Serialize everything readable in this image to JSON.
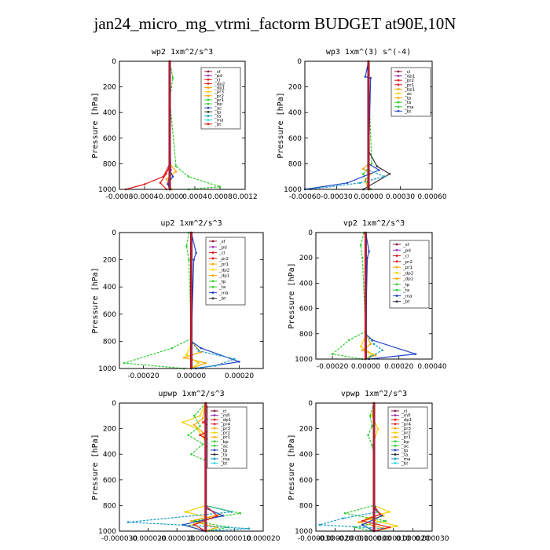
{
  "figure_title": "jan24_micro_mg_vtrmi_factorm  BUDGET at90E,10N",
  "colors": {
    "red": "#e41a1c",
    "purple": "#9b30b5",
    "orange": "#ffa500",
    "yellow": "#f5d000",
    "green": "#33cc33",
    "blue": "#1f45c8",
    "teal": "#1a9ec4",
    "cyan": "#33dddd",
    "dark": "#333333",
    "maroon": "#8b1a3a"
  },
  "chart_data": [
    {
      "type": "line",
      "title": "wp2  1xm^2/s^3",
      "ylabel": "Pressure [hPa]",
      "ylim": [
        1000,
        0
      ],
      "xlim": [
        -0.0008,
        0.0012
      ],
      "xticks": [
        -0.0008,
        -0.0004,
        0.0,
        0.0004,
        0.0008,
        0.0012
      ],
      "xtick_labels": [
        "-0.0008",
        "-0.0004",
        "-0.0000",
        "0.0004",
        "0.0008",
        "0.0012"
      ],
      "yticks": [
        0,
        200,
        400,
        600,
        800,
        1000
      ],
      "legend": [
        "_sf",
        "_pd",
        "_cl",
        "_dp2",
        "_dp1",
        "_pr3",
        "_pr2",
        "_pr1",
        "_bp",
        "_ac",
        "_tp",
        "_ta",
        "_ma",
        "_bt"
      ],
      "series": [
        {
          "name": "_sf",
          "color": "#8b1a3a",
          "x": [
            0,
            0,
            0,
            0,
            0,
            0
          ],
          "y": [
            0,
            200,
            400,
            600,
            800,
            1000
          ]
        },
        {
          "name": "_pd",
          "color": "#9b30b5",
          "x": [
            0,
            0,
            0,
            2e-05,
            -3e-05,
            1e-05
          ],
          "y": [
            0,
            300,
            600,
            850,
            950,
            1000
          ]
        },
        {
          "name": "_cl",
          "color": "#e41a1c",
          "x": [
            0,
            0,
            -0.0001,
            -0.0004,
            -0.0007
          ],
          "y": [
            0,
            800,
            900,
            960,
            1000
          ]
        },
        {
          "name": "_dp1",
          "color": "#e41a1c",
          "x": [
            0,
            0,
            -6e-05,
            -0.00015,
            -5e-05
          ],
          "y": [
            0,
            820,
            880,
            950,
            1000
          ]
        },
        {
          "name": "_pr2",
          "color": "#ffa500",
          "x": [
            0,
            0,
            0.0001,
            -5e-05,
            3e-05
          ],
          "y": [
            0,
            800,
            860,
            920,
            1000
          ]
        },
        {
          "name": "_bp",
          "color": "#33cc33",
          "x": [
            0,
            5e-05,
            0,
            0.0001,
            0.0003,
            0.0008,
            0.0003
          ],
          "y": [
            0,
            130,
            300,
            820,
            900,
            980,
            1000
          ]
        },
        {
          "name": "_tp",
          "color": "#1f45c8",
          "x": [
            0,
            0,
            5e-05,
            -3e-05,
            0
          ],
          "y": [
            0,
            850,
            900,
            960,
            1000
          ]
        }
      ]
    },
    {
      "type": "line",
      "title": "wp3  1xm^(3) s^(-4)",
      "ylabel": "Pressure [hPa]",
      "ylim": [
        1000,
        0
      ],
      "xlim": [
        -0.0006,
        0.0006
      ],
      "xticks": [
        -0.0006,
        -0.0003,
        0.0,
        0.0003,
        0.0006
      ],
      "xtick_labels": [
        "-0.00060",
        "-0.00030",
        "0.00000",
        "0.00030",
        "0.00060"
      ],
      "yticks": [
        0,
        200,
        400,
        600,
        800,
        1000
      ],
      "legend": [
        "_cl",
        "_dp1",
        "_pr2",
        "_pr1",
        "_bp1",
        "_ac",
        "_tp",
        "_ta",
        "_ma",
        "_bt"
      ],
      "series": [
        {
          "name": "_cl",
          "color": "#e41a1c",
          "x": [
            0,
            0,
            0,
            0
          ],
          "y": [
            0,
            400,
            800,
            1000
          ]
        },
        {
          "name": "_pr2",
          "color": "#ffa500",
          "x": [
            0,
            0,
            -5e-05,
            2e-05,
            -3e-05,
            0
          ],
          "y": [
            0,
            800,
            840,
            880,
            930,
            1000
          ]
        },
        {
          "name": "_bp1",
          "color": "#33cc33",
          "x": [
            0,
            0,
            3e-05,
            -5e-05,
            2e-05
          ],
          "y": [
            0,
            150,
            800,
            880,
            1000
          ]
        },
        {
          "name": "_tp",
          "color": "#1f45c8",
          "x": [
            0,
            -3e-05,
            2e-05,
            0,
            0.0001,
            -0.0002,
            -0.0006
          ],
          "y": [
            0,
            120,
            130,
            800,
            850,
            950,
            1000
          ]
        },
        {
          "name": "_ta",
          "color": "#333333",
          "x": [
            0,
            0,
            8e-05,
            0.0002,
            -5e-05
          ],
          "y": [
            0,
            700,
            820,
            880,
            1000
          ]
        },
        {
          "name": "_ma",
          "color": "#1a9ec4",
          "x": [
            0,
            0,
            0.00015,
            -8e-05,
            -0.00055
          ],
          "y": [
            0,
            850,
            900,
            950,
            1000
          ]
        }
      ]
    },
    {
      "type": "line",
      "title": "up2  1xm^2/s^3",
      "ylabel": "Pressure [hPa]",
      "ylim": [
        1000,
        0
      ],
      "xlim": [
        -0.0003,
        0.0003
      ],
      "xticks": [
        -0.0002,
        0.0,
        0.0002
      ],
      "xtick_labels": [
        "-0.00020",
        "0.00000",
        "0.00020"
      ],
      "yticks": [
        0,
        200,
        400,
        600,
        800,
        1000
      ],
      "legend": [
        "_sf",
        "_pd",
        "_cl",
        "_pr2",
        "_pr1",
        "_dp2",
        "_dp1",
        "_tp",
        "_ta",
        "_ma",
        "_bt"
      ],
      "series": [
        {
          "name": "_sf",
          "color": "#8b1a3a",
          "x": [
            0,
            0,
            0,
            0
          ],
          "y": [
            0,
            400,
            800,
            1000
          ]
        },
        {
          "name": "_cl",
          "color": "#e41a1c",
          "x": [
            0,
            0,
            0,
            0
          ],
          "y": [
            0,
            500,
            900,
            1000
          ]
        },
        {
          "name": "_pr2",
          "color": "#ffa500",
          "x": [
            0,
            0,
            4e-05,
            -3e-05,
            6e-05,
            0
          ],
          "y": [
            0,
            800,
            880,
            920,
            960,
            1000
          ]
        },
        {
          "name": "_pr1",
          "color": "#f5d000",
          "x": [
            0,
            0,
            -2e-05,
            3e-05,
            0
          ],
          "y": [
            0,
            820,
            900,
            960,
            1000
          ]
        },
        {
          "name": "_dp2",
          "color": "#33cc33",
          "x": [
            -1e-05,
            -2e-05,
            -1e-05,
            0,
            -8e-05,
            -0.00028,
            -3e-05
          ],
          "y": [
            0,
            100,
            200,
            780,
            850,
            960,
            1000
          ]
        },
        {
          "name": "_tp",
          "color": "#1f45c8",
          "x": [
            0,
            2e-05,
            1e-05,
            0,
            4e-05,
            0.0002,
            2e-05
          ],
          "y": [
            0,
            150,
            200,
            800,
            850,
            950,
            1000
          ]
        },
        {
          "name": "_ma",
          "color": "#1a9ec4",
          "x": [
            0,
            0,
            3e-05,
            0.00018,
            0.0001,
            0
          ],
          "y": [
            0,
            800,
            870,
            930,
            980,
            1000
          ]
        }
      ]
    },
    {
      "type": "line",
      "title": "vp2  1xm^2/s^3",
      "ylabel": "Pressure [hPa]",
      "ylim": [
        1000,
        0
      ],
      "xlim": [
        -0.0003,
        0.0004
      ],
      "xticks": [
        -0.0002,
        0.0,
        0.0002,
        0.0004
      ],
      "xtick_labels": [
        "-0.00020",
        "0.00000",
        "0.00020",
        "0.00040"
      ],
      "yticks": [
        0,
        200,
        400,
        600,
        800,
        1000
      ],
      "legend": [
        "_sf",
        "_pd",
        "_cl",
        "_pr2",
        "_pr1",
        "_dp2",
        "_dp1",
        "_tp",
        "_ta",
        "_ma",
        "_bt"
      ],
      "series": [
        {
          "name": "_sf",
          "color": "#8b1a3a",
          "x": [
            0,
            0,
            0,
            0
          ],
          "y": [
            0,
            400,
            800,
            1000
          ]
        },
        {
          "name": "_cl",
          "color": "#e41a1c",
          "x": [
            0,
            0,
            0,
            0
          ],
          "y": [
            0,
            500,
            900,
            1000
          ]
        },
        {
          "name": "_pr2",
          "color": "#ffa500",
          "x": [
            0,
            0,
            3e-05,
            -2e-05,
            6e-05,
            0
          ],
          "y": [
            0,
            800,
            880,
            930,
            970,
            1000
          ]
        },
        {
          "name": "_pr1",
          "color": "#f5d000",
          "x": [
            0,
            0,
            -3e-05,
            4e-05,
            0
          ],
          "y": [
            0,
            820,
            900,
            960,
            1000
          ]
        },
        {
          "name": "_dp2",
          "color": "#33cc33",
          "x": [
            -1e-05,
            -3e-05,
            -2e-05,
            0,
            -0.0001,
            -0.0002,
            -2e-05
          ],
          "y": [
            0,
            100,
            200,
            780,
            850,
            960,
            1000
          ]
        },
        {
          "name": "_tp",
          "color": "#1f45c8",
          "x": [
            0,
            2e-05,
            1e-05,
            0,
            4e-05,
            0.0003,
            2e-05
          ],
          "y": [
            0,
            150,
            200,
            800,
            850,
            960,
            1000
          ]
        },
        {
          "name": "_ma",
          "color": "#1a9ec4",
          "x": [
            0,
            0,
            5e-05,
            0.0001,
            3e-05,
            0
          ],
          "y": [
            0,
            800,
            880,
            930,
            980,
            1000
          ]
        }
      ]
    },
    {
      "type": "line",
      "title": "upwp  1xm^2/s^3",
      "ylabel": "Pressure [hPa]",
      "ylim": [
        1000,
        0
      ],
      "xlim": [
        -3e-05,
        2e-05
      ],
      "xticks": [
        -3e-05,
        -2e-05,
        -1e-05,
        0.0,
        1e-05,
        2e-05
      ],
      "xtick_labels": [
        "-0.000030",
        "-0.000020",
        "-0.000010",
        "0.000000",
        "0.000010",
        "0.000020"
      ],
      "yticks": [
        0,
        200,
        400,
        600,
        800,
        1000
      ],
      "legend": [
        "_cl",
        "_mfl",
        "_dp1",
        "_pr4",
        "_pr3",
        "_pr2",
        "_pr1",
        "_bp",
        "_ac",
        "_tp",
        "_ta",
        "_ma",
        "_bt"
      ],
      "series": [
        {
          "name": "_mfl",
          "color": "#9b30b5",
          "x": [
            0,
            0,
            0,
            0
          ],
          "y": [
            0,
            300,
            700,
            1000
          ]
        },
        {
          "name": "_dp1",
          "color": "#e41a1c",
          "x": [
            0,
            2e-06,
            -1e-06,
            3e-06,
            -2e-06,
            2e-06,
            0,
            0,
            4e-06,
            -4e-06,
            0
          ],
          "y": [
            0,
            100,
            150,
            200,
            250,
            300,
            350,
            800,
            880,
            950,
            1000
          ]
        },
        {
          "name": "_pr3",
          "color": "#f5d000",
          "x": [
            0,
            -2e-06,
            -8e-06,
            -3e-06,
            0,
            0,
            -7e-06,
            2e-06,
            -6e-06,
            0
          ],
          "y": [
            0,
            100,
            150,
            200,
            300,
            800,
            850,
            900,
            960,
            1000
          ]
        },
        {
          "name": "_pr1",
          "color": "#ffa500",
          "x": [
            0,
            -1e-06,
            -4e-06,
            -1e-06,
            0,
            0,
            5e-06,
            -5e-06,
            4e-06,
            0
          ],
          "y": [
            0,
            120,
            170,
            230,
            300,
            820,
            870,
            920,
            970,
            1000
          ]
        },
        {
          "name": "_bp",
          "color": "#33cc33",
          "x": [
            0,
            -4e-06,
            -2e-06,
            -6e-06,
            -1e-06,
            -5e-06,
            0,
            0,
            1.2e-05,
            -4e-06,
            8e-06,
            0
          ],
          "y": [
            0,
            100,
            180,
            250,
            320,
            400,
            450,
            800,
            860,
            920,
            970,
            1000
          ]
        },
        {
          "name": "_tp",
          "color": "#1f45c8",
          "x": [
            0,
            0,
            6e-06,
            -8e-06,
            0
          ],
          "y": [
            0,
            820,
            880,
            950,
            1000
          ]
        },
        {
          "name": "_ma",
          "color": "#1a9ec4",
          "x": [
            0,
            0,
            9e-06,
            -2.7e-05,
            1.5e-05,
            0
          ],
          "y": [
            0,
            800,
            850,
            930,
            980,
            1000
          ]
        }
      ]
    },
    {
      "type": "line",
      "title": "vpwp  1xm^2/s^3",
      "ylabel": "Pressure [hPa]",
      "ylim": [
        1000,
        0
      ],
      "xlim": [
        -3e-05,
        3e-05
      ],
      "xticks": [
        -3e-05,
        -2e-05,
        -1e-05,
        0.0,
        1e-05,
        2e-05,
        3e-05
      ],
      "xtick_labels": [
        "-0.000030",
        "-0.000020",
        "-0.000010",
        "0.000000",
        "0.000010",
        "0.000020",
        "0.000030"
      ],
      "yticks": [
        0,
        200,
        400,
        600,
        800,
        1000
      ],
      "legend": [
        "_cl",
        "_mfl",
        "_dp1",
        "_pr4",
        "_pr3",
        "_pr2",
        "_pr1",
        "_bp",
        "_ac",
        "_tp",
        "_ta",
        "_ma",
        "_bt"
      ],
      "series": [
        {
          "name": "_mfl",
          "color": "#9b30b5",
          "x": [
            0,
            0,
            0,
            0
          ],
          "y": [
            0,
            300,
            700,
            1000
          ]
        },
        {
          "name": "_dp1",
          "color": "#e41a1c",
          "x": [
            0,
            0,
            3e-06,
            -6e-06,
            8e-06,
            0
          ],
          "y": [
            0,
            800,
            870,
            920,
            970,
            1000
          ]
        },
        {
          "name": "_pr3",
          "color": "#f5d000",
          "x": [
            0,
            -1e-06,
            2e-06,
            0,
            0,
            8e-06,
            -4e-06,
            1.2e-05,
            0
          ],
          "y": [
            0,
            100,
            200,
            300,
            800,
            850,
            900,
            960,
            1000
          ]
        },
        {
          "name": "_pr1",
          "color": "#ffa500",
          "x": [
            0,
            0,
            5e-06,
            -8e-06,
            6e-06,
            0
          ],
          "y": [
            0,
            820,
            880,
            930,
            980,
            1000
          ]
        },
        {
          "name": "_bp",
          "color": "#33cc33",
          "x": [
            0,
            -2e-06,
            -1e-06,
            -3e-06,
            -1e-06,
            0,
            0,
            -1.5e-05,
            6e-06,
            -1e-05,
            0
          ],
          "y": [
            0,
            100,
            180,
            250,
            330,
            400,
            800,
            860,
            920,
            970,
            1000
          ]
        },
        {
          "name": "_tp",
          "color": "#1f45c8",
          "x": [
            0,
            0,
            4e-06,
            -6e-06,
            0
          ],
          "y": [
            0,
            820,
            880,
            950,
            1000
          ]
        },
        {
          "name": "_ma",
          "color": "#1a9ec4",
          "x": [
            0,
            0,
            2e-06,
            -1.6e-05,
            -2.8e-05,
            5e-06,
            0
          ],
          "y": [
            0,
            780,
            850,
            900,
            950,
            980,
            1000
          ]
        }
      ]
    }
  ]
}
